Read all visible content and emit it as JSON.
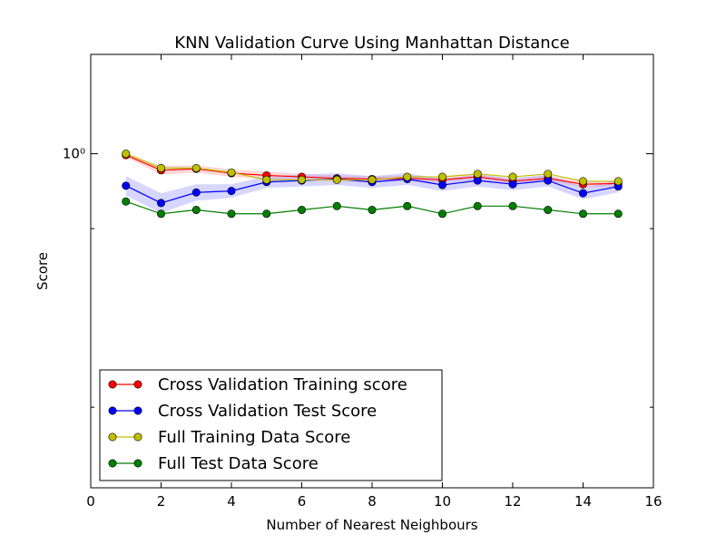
{
  "chart_data": {
    "type": "line",
    "title": "KNN Validation Curve Using Manhattan Distance",
    "xlabel": "Number of Nearest Neighbours",
    "ylabel": "Score",
    "xlim": [
      0,
      16
    ],
    "x_ticks": [
      0,
      2,
      4,
      6,
      8,
      10,
      12,
      14,
      16
    ],
    "x_tick_labels": [
      "0",
      "2",
      "4",
      "6",
      "8",
      "10",
      "12",
      "14",
      "16"
    ],
    "yscale": "log",
    "ylim": [
      0.625,
      1.15
    ],
    "y_ticks": [
      1.0
    ],
    "y_tick_labels": [
      "10⁰"
    ],
    "y_minor_ticks": [
      0.9,
      0.7
    ],
    "grid": false,
    "legend_placement": "lower-left",
    "x": [
      1,
      2,
      3,
      4,
      5,
      6,
      7,
      8,
      9,
      10,
      11,
      12,
      13,
      14,
      15
    ],
    "series": [
      {
        "name": "Cross Validation Training score",
        "color": "#ff0000",
        "band_color": "#ff9999",
        "values": [
          0.998,
          0.977,
          0.979,
          0.973,
          0.97,
          0.968,
          0.966,
          0.965,
          0.966,
          0.964,
          0.968,
          0.962,
          0.966,
          0.958,
          0.959
        ],
        "band_halfwidth": [
          0.003,
          0.006,
          0.005,
          0.005,
          0.005,
          0.004,
          0.004,
          0.004,
          0.004,
          0.004,
          0.004,
          0.004,
          0.004,
          0.004,
          0.004
        ]
      },
      {
        "name": "Cross Validation Test Score",
        "color": "#0000ff",
        "band_color": "#9999ff",
        "values": [
          0.956,
          0.933,
          0.947,
          0.949,
          0.961,
          0.963,
          0.965,
          0.961,
          0.965,
          0.957,
          0.963,
          0.958,
          0.963,
          0.946,
          0.955
        ],
        "band_halfwidth": [
          0.013,
          0.013,
          0.011,
          0.009,
          0.008,
          0.008,
          0.008,
          0.008,
          0.008,
          0.008,
          0.008,
          0.008,
          0.008,
          0.008,
          0.008
        ]
      },
      {
        "name": "Full Training Data Score",
        "color": "#bfbf00",
        "band_color": "#e5e5b2",
        "values": [
          1.0,
          0.98,
          0.98,
          0.974,
          0.964,
          0.964,
          0.964,
          0.964,
          0.968,
          0.968,
          0.972,
          0.968,
          0.972,
          0.962,
          0.962
        ],
        "band_halfwidth": [
          0,
          0,
          0,
          0,
          0,
          0,
          0,
          0,
          0,
          0,
          0,
          0,
          0,
          0,
          0
        ]
      },
      {
        "name": "Full Test Data Score",
        "color": "#007f00",
        "band_color": "#99cc99",
        "values": [
          0.935,
          0.919,
          0.924,
          0.919,
          0.919,
          0.924,
          0.929,
          0.924,
          0.929,
          0.919,
          0.929,
          0.929,
          0.924,
          0.919,
          0.919
        ],
        "band_halfwidth": [
          0,
          0,
          0,
          0,
          0,
          0,
          0,
          0,
          0,
          0,
          0,
          0,
          0,
          0,
          0
        ]
      }
    ]
  }
}
